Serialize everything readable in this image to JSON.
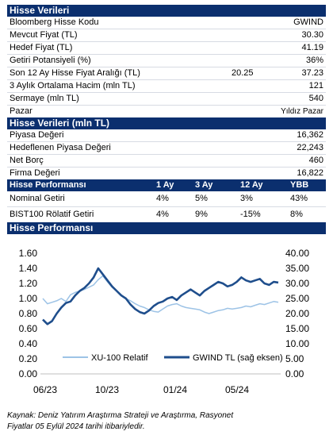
{
  "stock_data": {
    "header": "Hisse Verileri",
    "rows": [
      {
        "label": "Bloomberg Hisse Kodu",
        "value": "GWIND"
      },
      {
        "label": "Mevcut Fiyat (TL)",
        "value": "30.30"
      },
      {
        "label": "Hedef Fiyat (TL)",
        "value": "41.19"
      },
      {
        "label": "Getiri Potansiyeli (%)",
        "value": "36%"
      },
      {
        "label": "Son 12 Ay Hisse Fiyat Aralığı (TL)",
        "low": "20.25",
        "value": "37.23"
      },
      {
        "label": "3 Aylık Ortalama Hacim (mln TL)",
        "value": "121"
      },
      {
        "label": "Sermaye (mln TL)",
        "value": "540"
      },
      {
        "label": "Pazar",
        "value": "Yıldız Pazar"
      }
    ]
  },
  "stock_data_mln": {
    "header": "Hisse Verileri (mln TL)",
    "rows": [
      {
        "label": "Piyasa Değeri",
        "value": "16,362"
      },
      {
        "label": "Hedeflenen Piyasa Değeri",
        "value": "22,243"
      },
      {
        "label": "Net Borç",
        "value": "460"
      },
      {
        "label": "Firma Değeri",
        "value": "16,822"
      }
    ]
  },
  "performance_table": {
    "header": "Hisse Performansı",
    "columns": [
      "1 Ay",
      "3 Ay",
      "12 Ay",
      "YBB"
    ],
    "rows": [
      {
        "label": "Nominal Getiri",
        "values": [
          "4%",
          "5%",
          "3%",
          "43%"
        ]
      },
      {
        "label": "BIST100 Rölatif Getiri",
        "values": [
          "4%",
          "9%",
          "-15%",
          "8%"
        ]
      }
    ]
  },
  "performance_chart_header": "Hisse Performansı",
  "chart_data": {
    "type": "line",
    "x_ticks": [
      "06/23",
      "10/23",
      "01/24",
      "05/24"
    ],
    "y_left": {
      "ticks": [
        "0.00",
        "0.20",
        "0.40",
        "0.60",
        "0.80",
        "1.00",
        "1.20",
        "1.40",
        "1.60"
      ],
      "range": [
        0,
        1.6
      ]
    },
    "y_right": {
      "ticks": [
        "0.00",
        "5.00",
        "10.00",
        "15.00",
        "20.00",
        "25.00",
        "30.00",
        "35.00",
        "40.00"
      ],
      "range": [
        0,
        40
      ]
    },
    "series": [
      {
        "name": "XU-100 Relatif",
        "axis": "left",
        "color": "#9dc3e6",
        "values": [
          1.0,
          0.93,
          0.95,
          0.97,
          1.0,
          0.96,
          1.05,
          1.08,
          1.1,
          1.12,
          1.15,
          1.18,
          1.25,
          1.3,
          1.22,
          1.15,
          1.1,
          1.05,
          1.0,
          0.97,
          0.93,
          0.9,
          0.88,
          0.85,
          0.83,
          0.82,
          0.86,
          0.9,
          0.92,
          0.93,
          0.9,
          0.88,
          0.87,
          0.86,
          0.85,
          0.82,
          0.8,
          0.82,
          0.84,
          0.85,
          0.87,
          0.86,
          0.87,
          0.88,
          0.9,
          0.89,
          0.91,
          0.93,
          0.92,
          0.94,
          0.96,
          0.95
        ]
      },
      {
        "name": "GWIND TL (sağ eksen)",
        "axis": "right",
        "color": "#1f4e8c",
        "values": [
          18.0,
          16.5,
          17.5,
          20.0,
          22.0,
          23.5,
          24.0,
          26.0,
          27.5,
          28.5,
          30.0,
          32.0,
          35.0,
          33.0,
          31.0,
          29.0,
          27.5,
          26.0,
          25.0,
          23.0,
          21.5,
          20.5,
          20.0,
          21.0,
          22.5,
          23.5,
          24.0,
          25.0,
          25.5,
          24.5,
          26.0,
          27.0,
          28.0,
          27.0,
          26.0,
          27.5,
          28.5,
          29.5,
          30.5,
          30.0,
          29.0,
          29.5,
          30.5,
          32.0,
          31.0,
          30.5,
          31.0,
          31.5,
          30.0,
          29.5,
          30.5,
          30.3
        ]
      }
    ]
  },
  "source_note": {
    "line1": "Kaynak: Deniz Yatırım Araştırma Strateji ve Araştırma, Rasyonet",
    "line2": "Fiyatlar 05 Eylül 2024 tarihi itibariyledir."
  }
}
